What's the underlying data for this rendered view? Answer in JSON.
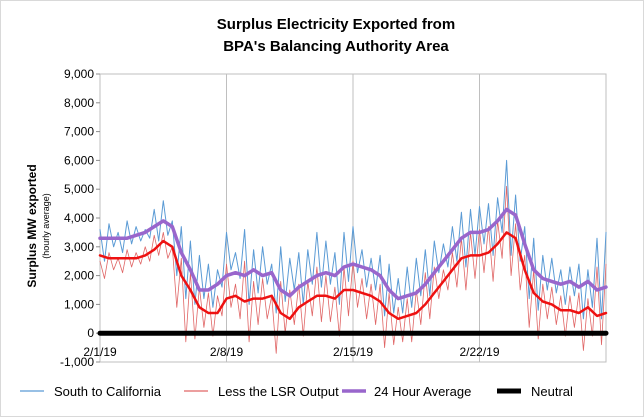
{
  "chart_data": {
    "type": "line",
    "title_lines": [
      "Surplus Electricity Exported from",
      "BPA's Balancing Authority Area"
    ],
    "ylabel": "Surplus MW exported",
    "ylabel_sub": "(hourly average)",
    "xlabel": "",
    "ylim": [
      -1000,
      9000
    ],
    "y_ticks": [
      -1000,
      0,
      1000,
      2000,
      3000,
      4000,
      5000,
      6000,
      7000,
      8000,
      9000
    ],
    "y_tick_labels": [
      "-1,000",
      "0",
      "1,000",
      "2,000",
      "3,000",
      "4,000",
      "5,000",
      "6,000",
      "7,000",
      "8,000",
      "9,000"
    ],
    "x_range_days": [
      1,
      29
    ],
    "x_tick_positions": [
      1,
      8,
      15,
      22
    ],
    "x_tick_labels": [
      "2/1/19",
      "2/8/19",
      "2/15/19",
      "2/22/19"
    ],
    "grid": "vertical-weekly",
    "legend_position": "bottom",
    "series": [
      {
        "name": "South to California",
        "color": "#5b9bd5",
        "x": [
          1,
          1.25,
          1.5,
          1.75,
          2,
          2.25,
          2.5,
          2.75,
          3,
          3.25,
          3.5,
          3.75,
          4,
          4.25,
          4.5,
          4.75,
          5,
          5.25,
          5.5,
          5.75,
          6,
          6.25,
          6.5,
          6.75,
          7,
          7.25,
          7.5,
          7.75,
          8,
          8.25,
          8.5,
          8.75,
          9,
          9.25,
          9.5,
          9.75,
          10,
          10.25,
          10.5,
          10.75,
          11,
          11.25,
          11.5,
          11.75,
          12,
          12.25,
          12.5,
          12.75,
          13,
          13.25,
          13.5,
          13.75,
          14,
          14.25,
          14.5,
          14.75,
          15,
          15.25,
          15.5,
          15.75,
          16,
          16.25,
          16.5,
          16.75,
          17,
          17.25,
          17.5,
          17.75,
          18,
          18.25,
          18.5,
          18.75,
          19,
          19.25,
          19.5,
          19.75,
          20,
          20.25,
          20.5,
          20.75,
          21,
          21.25,
          21.5,
          21.75,
          22,
          22.25,
          22.5,
          22.75,
          23,
          23.25,
          23.5,
          23.75,
          24,
          24.25,
          24.5,
          24.75,
          25,
          25.25,
          25.5,
          25.75,
          26,
          26.25,
          26.5,
          26.75,
          27,
          27.25,
          27.5,
          27.75,
          28,
          28.25,
          28.5,
          28.75,
          29
        ],
        "values": [
          3600,
          2500,
          3800,
          3000,
          3500,
          2800,
          3900,
          3100,
          3700,
          3200,
          3600,
          3300,
          4300,
          3200,
          4600,
          3400,
          3900,
          2000,
          3700,
          1200,
          3200,
          1000,
          2700,
          1200,
          2400,
          900,
          2200,
          1600,
          3500,
          2200,
          2800,
          1900,
          3600,
          1000,
          2900,
          1400,
          3000,
          1700,
          2400,
          700,
          3000,
          1100,
          2600,
          1500,
          2800,
          1000,
          2900,
          1700,
          3500,
          1600,
          3200,
          1700,
          2800,
          1000,
          3500,
          1800,
          3700,
          2100,
          2900,
          1600,
          2600,
          1500,
          2700,
          600,
          2400,
          700,
          1900,
          700,
          2300,
          900,
          2600,
          1300,
          2900,
          1300,
          3200,
          2100,
          3100,
          2300,
          3700,
          2500,
          4200,
          2300,
          4300,
          2700,
          4400,
          3100,
          4500,
          2700,
          4700,
          3500,
          6000,
          2700,
          4800,
          2500,
          3700,
          1200,
          3300,
          800,
          2700,
          1500,
          2600,
          1400,
          2200,
          1000,
          2300,
          1300,
          2400,
          500,
          2200,
          900,
          3300,
          500,
          3500
        ]
      },
      {
        "name": "Less the LSR Output",
        "color": "#e06666",
        "x": [
          1,
          1.25,
          1.5,
          1.75,
          2,
          2.25,
          2.5,
          2.75,
          3,
          3.25,
          3.5,
          3.75,
          4,
          4.25,
          4.5,
          4.75,
          5,
          5.25,
          5.5,
          5.75,
          6,
          6.25,
          6.5,
          6.75,
          7,
          7.25,
          7.5,
          7.75,
          8,
          8.25,
          8.5,
          8.75,
          9,
          9.25,
          9.5,
          9.75,
          10,
          10.25,
          10.5,
          10.75,
          11,
          11.25,
          11.5,
          11.75,
          12,
          12.25,
          12.5,
          12.75,
          13,
          13.25,
          13.5,
          13.75,
          14,
          14.25,
          14.5,
          14.75,
          15,
          15.25,
          15.5,
          15.75,
          16,
          16.25,
          16.5,
          16.75,
          17,
          17.25,
          17.5,
          17.75,
          18,
          18.25,
          18.5,
          18.75,
          19,
          19.25,
          19.5,
          19.75,
          20,
          20.25,
          20.5,
          20.75,
          21,
          21.25,
          21.5,
          21.75,
          22,
          22.25,
          22.5,
          22.75,
          23,
          23.25,
          23.5,
          23.75,
          24,
          24.25,
          24.5,
          24.75,
          25,
          25.25,
          25.5,
          25.75,
          26,
          26.25,
          26.5,
          26.75,
          27,
          27.25,
          27.5,
          27.75,
          28,
          28.25,
          28.5,
          28.75,
          29
        ],
        "values": [
          2500,
          1900,
          2800,
          2200,
          2600,
          2100,
          2900,
          2300,
          2800,
          2400,
          3000,
          2500,
          3400,
          2700,
          3500,
          2600,
          3000,
          900,
          2600,
          -300,
          2100,
          -200,
          1600,
          200,
          1400,
          -100,
          1300,
          600,
          2400,
          900,
          1700,
          500,
          2500,
          -300,
          1800,
          300,
          1900,
          500,
          1300,
          -700,
          1800,
          0,
          1500,
          300,
          1700,
          -100,
          1800,
          600,
          2300,
          400,
          2000,
          400,
          1600,
          -100,
          2300,
          600,
          2500,
          900,
          1900,
          500,
          1700,
          300,
          1700,
          -500,
          1400,
          -400,
          900,
          -300,
          1200,
          -300,
          1500,
          300,
          2100,
          500,
          2300,
          1200,
          2200,
          1500,
          2800,
          1600,
          3300,
          1500,
          3500,
          1900,
          3600,
          2100,
          3700,
          1800,
          3900,
          2600,
          5100,
          2000,
          3800,
          1500,
          2700,
          200,
          2200,
          -200,
          1700,
          500,
          1600,
          300,
          1300,
          -100,
          1300,
          200,
          1400,
          -600,
          1200,
          -100,
          2300,
          -400,
          2400
        ]
      },
      {
        "name": "24 Hour Average",
        "color": "#ee1111",
        "x": [
          1,
          1.5,
          2,
          2.5,
          3,
          3.5,
          4,
          4.5,
          5,
          5.5,
          6,
          6.5,
          7,
          7.5,
          8,
          8.5,
          9,
          9.5,
          10,
          10.5,
          11,
          11.5,
          12,
          12.5,
          13,
          13.5,
          14,
          14.5,
          15,
          15.5,
          16,
          16.5,
          17,
          17.5,
          18,
          18.5,
          19,
          19.5,
          20,
          20.5,
          21,
          21.5,
          22,
          22.5,
          23,
          23.5,
          24,
          24.5,
          25,
          25.5,
          26,
          26.5,
          27,
          27.5,
          28,
          28.5,
          29
        ],
        "values": [
          2700,
          2600,
          2600,
          2600,
          2600,
          2700,
          2900,
          3200,
          3000,
          2000,
          1500,
          900,
          700,
          700,
          1200,
          1300,
          1100,
          1200,
          1200,
          1300,
          700,
          500,
          900,
          1100,
          1300,
          1300,
          1200,
          1500,
          1500,
          1400,
          1300,
          1100,
          700,
          500,
          600,
          700,
          1000,
          1400,
          1800,
          2200,
          2600,
          2700,
          2700,
          2800,
          3100,
          3500,
          3300,
          2200,
          1400,
          1100,
          1000,
          800,
          800,
          700,
          900,
          600,
          700
        ]
      },
      {
        "name": "24 Hour Average",
        "color": "#9966cc",
        "x": [
          1,
          1.5,
          2,
          2.5,
          3,
          3.5,
          4,
          4.5,
          5,
          5.5,
          6,
          6.5,
          7,
          7.5,
          8,
          8.5,
          9,
          9.5,
          10,
          10.5,
          11,
          11.5,
          12,
          12.5,
          13,
          13.5,
          14,
          14.5,
          15,
          15.5,
          16,
          16.5,
          17,
          17.5,
          18,
          18.5,
          19,
          19.5,
          20,
          20.5,
          21,
          21.5,
          22,
          22.5,
          23,
          23.5,
          24,
          24.5,
          25,
          25.5,
          26,
          26.5,
          27,
          27.5,
          28,
          28.5,
          29
        ],
        "values": [
          3300,
          3300,
          3300,
          3300,
          3400,
          3500,
          3700,
          3900,
          3700,
          2800,
          2200,
          1500,
          1500,
          1700,
          2000,
          2100,
          2000,
          2200,
          2000,
          2100,
          1500,
          1300,
          1600,
          1800,
          2000,
          2100,
          2000,
          2300,
          2400,
          2300,
          2200,
          2000,
          1500,
          1200,
          1300,
          1400,
          1700,
          2100,
          2500,
          2900,
          3300,
          3500,
          3500,
          3600,
          3900,
          4300,
          4100,
          3100,
          2200,
          1900,
          1800,
          1700,
          1800,
          1600,
          1800,
          1500,
          1600
        ]
      },
      {
        "name": "Neutral",
        "color": "#000000",
        "x": [
          1,
          29
        ],
        "values": [
          0,
          0
        ]
      }
    ],
    "legend": [
      "South to California",
      "Less the LSR Output",
      "24 Hour Average",
      "24 Hour Average",
      "Neutral"
    ]
  }
}
